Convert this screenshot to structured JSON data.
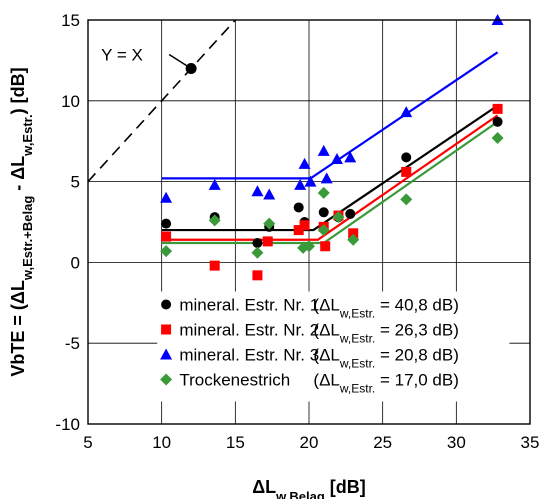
{
  "chart_data": {
    "type": "scatter",
    "xlabel": "ΔL",
    "xlabel_sub": "w,Belag",
    "xlabel_unit": " [dB]",
    "ylabel": "VbTE = (ΔL",
    "ylabel_sub1": "w,Estr.+Belag",
    "ylabel_mid": " - ΔL",
    "ylabel_sub2": "w,Estr.",
    "ylabel_unit": ") [dB]",
    "xlim": [
      5,
      35
    ],
    "ylim": [
      -10,
      15
    ],
    "xticks": [
      5,
      10,
      15,
      20,
      25,
      30,
      35
    ],
    "yticks": [
      -10,
      -5,
      0,
      5,
      10,
      15
    ],
    "grid": true,
    "legend_position": "bottom",
    "reference_line": {
      "label": "Y = X",
      "style": "dashed",
      "color": "#000000",
      "marker_x": 12.0,
      "marker_y": 12.0
    },
    "series": [
      {
        "name": "mineral. Estr. Nr. 1",
        "info_pre": "(ΔL",
        "info_sub": "w,Estr.",
        "info_post": " = 40,8 dB)",
        "marker": "circle",
        "color": "#000000",
        "points": [
          [
            10.3,
            2.4
          ],
          [
            13.6,
            2.8
          ],
          [
            16.5,
            1.2
          ],
          [
            17.3,
            2.2
          ],
          [
            19.3,
            3.4
          ],
          [
            19.7,
            2.5
          ],
          [
            21.0,
            3.1
          ],
          [
            22.0,
            2.8
          ],
          [
            22.8,
            3.0
          ],
          [
            26.6,
            6.5
          ],
          [
            32.8,
            8.7
          ]
        ],
        "fit": [
          [
            10.0,
            2.0
          ],
          [
            20.3,
            2.0
          ],
          [
            32.8,
            9.7
          ]
        ]
      },
      {
        "name": "mineral. Estr. Nr. 2",
        "info_pre": "(ΔL",
        "info_sub": "w,Estr.",
        "info_post": " = 26,3 dB)",
        "marker": "square",
        "color": "#ff0000",
        "points": [
          [
            10.3,
            1.6
          ],
          [
            13.6,
            -0.2
          ],
          [
            16.5,
            -0.8
          ],
          [
            17.2,
            1.3
          ],
          [
            19.3,
            2.0
          ],
          [
            19.7,
            2.3
          ],
          [
            21.0,
            2.2
          ],
          [
            21.1,
            1.0
          ],
          [
            22.0,
            2.9
          ],
          [
            23.0,
            1.8
          ],
          [
            26.6,
            5.6
          ],
          [
            32.8,
            9.5
          ]
        ],
        "fit": [
          [
            10.0,
            1.4
          ],
          [
            20.6,
            1.4
          ],
          [
            32.8,
            9.1
          ]
        ]
      },
      {
        "name": "mineral. Estr. Nr. 3",
        "info_pre": "(ΔL",
        "info_sub": "w,Estr.",
        "info_post": " = 20,8 dB)",
        "marker": "triangle",
        "color": "#0000ff",
        "points": [
          [
            10.3,
            4.0
          ],
          [
            13.6,
            4.8
          ],
          [
            16.5,
            4.4
          ],
          [
            17.3,
            4.2
          ],
          [
            19.4,
            4.8
          ],
          [
            19.7,
            6.1
          ],
          [
            20.1,
            5.0
          ],
          [
            21.0,
            6.9
          ],
          [
            21.2,
            5.2
          ],
          [
            21.9,
            6.4
          ],
          [
            22.8,
            6.5
          ],
          [
            26.6,
            9.3
          ],
          [
            32.8,
            15.0
          ]
        ],
        "fit": [
          [
            10.0,
            5.2
          ],
          [
            20.1,
            5.2
          ],
          [
            32.8,
            13.0
          ]
        ]
      },
      {
        "name": "Trockenestrich",
        "info_pre": "(ΔL",
        "info_sub": "w,Estr.",
        "info_post": " = 17,0 dB)",
        "marker": "diamond",
        "color": "#3a9a3a",
        "points": [
          [
            10.3,
            0.7
          ],
          [
            13.6,
            2.6
          ],
          [
            16.5,
            0.6
          ],
          [
            17.3,
            2.4
          ],
          [
            19.6,
            0.9
          ],
          [
            20.0,
            1.0
          ],
          [
            21.0,
            4.3
          ],
          [
            21.0,
            2.0
          ],
          [
            22.0,
            2.8
          ],
          [
            23.0,
            1.4
          ],
          [
            26.6,
            3.9
          ],
          [
            32.8,
            7.7
          ]
        ],
        "fit": [
          [
            10.0,
            1.2
          ],
          [
            21.0,
            1.2
          ],
          [
            32.8,
            8.7
          ]
        ]
      }
    ]
  }
}
